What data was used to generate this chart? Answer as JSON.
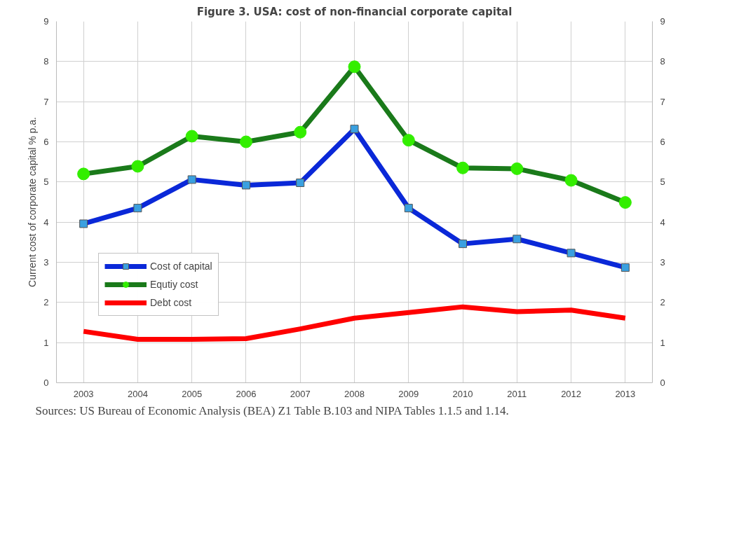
{
  "chart_data": {
    "type": "line",
    "title": "Figure 3. USA: cost of non-financial corporate capital",
    "ylabel": "Current cost of corporate capital % p.a.",
    "categories": [
      "2003",
      "2004",
      "2005",
      "2006",
      "2007",
      "2008",
      "2009",
      "2010",
      "2011",
      "2012",
      "2013"
    ],
    "series": [
      {
        "name": "Cost of capital",
        "color": "#0a28d8",
        "marker": "square",
        "values": [
          3.96,
          4.35,
          5.06,
          4.92,
          4.98,
          6.32,
          4.35,
          3.46,
          3.58,
          3.23,
          2.87
        ]
      },
      {
        "name": "Equtiy cost",
        "color": "#1a7a1a",
        "marker": "circle",
        "values": [
          5.2,
          5.39,
          6.14,
          6.0,
          6.24,
          7.87,
          6.04,
          5.35,
          5.33,
          5.04,
          4.49
        ]
      },
      {
        "name": "Debt cost",
        "color": "#ff0000",
        "marker": "none",
        "values": [
          1.28,
          1.08,
          1.08,
          1.1,
          1.34,
          1.61,
          1.75,
          1.89,
          1.77,
          1.81,
          1.61
        ]
      }
    ],
    "ylim": [
      0,
      9
    ],
    "yticks": [
      0,
      1,
      2,
      3,
      4,
      5,
      6,
      7,
      8,
      9
    ],
    "y2lim": [
      0,
      9
    ],
    "y2ticks": [
      0,
      1,
      2,
      3,
      4,
      5,
      6,
      7,
      8,
      9
    ],
    "grid": true,
    "legend": "bottom left",
    "line_style": "solid",
    "annotations": [
      "Sources: US Bureau of Economic Analysis (BEA) Z1 Table B.103 and NIPA Tables 1.1.5 and 1.14."
    ]
  }
}
